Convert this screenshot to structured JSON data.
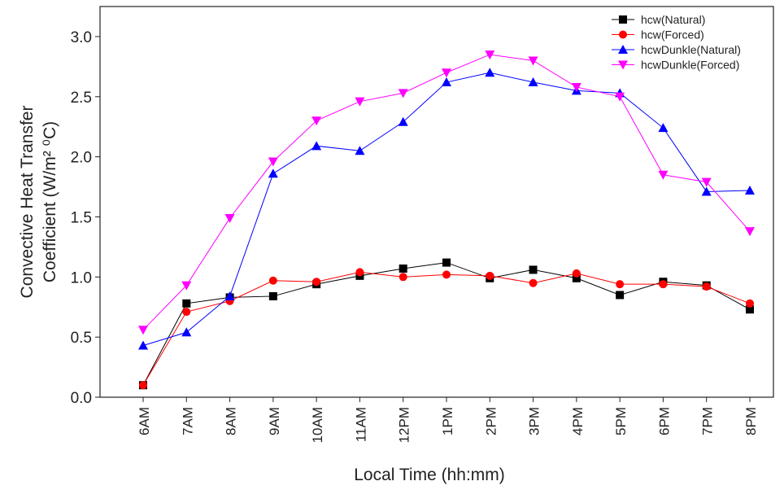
{
  "chart_data": {
    "type": "line",
    "y_label": [
      "Convective Heat Transfer",
      "Coefficient (W/m² ⁰C)"
    ],
    "x_label": "Local Time (hh:mm)",
    "categories": [
      "6AM",
      "7AM",
      "8AM",
      "9AM",
      "10AM",
      "11AM",
      "12PM",
      "1PM",
      "2PM",
      "3PM",
      "4PM",
      "5PM",
      "6PM",
      "7PM",
      "8PM"
    ],
    "series": [
      {
        "name": "hcw(Natural)",
        "color": "#000000",
        "marker": "square",
        "values": [
          0.1,
          0.78,
          0.83,
          0.84,
          0.94,
          1.01,
          1.07,
          1.12,
          0.99,
          1.06,
          0.99,
          0.85,
          0.96,
          0.93,
          0.73
        ]
      },
      {
        "name": "hcw(Forced)",
        "color": "#ff0000",
        "marker": "circle",
        "values": [
          0.1,
          0.71,
          0.8,
          0.97,
          0.96,
          1.04,
          1.0,
          1.02,
          1.01,
          0.95,
          1.03,
          0.94,
          0.94,
          0.92,
          0.78
        ]
      },
      {
        "name": "hcwDunkle(Natural)",
        "color": "#0000ff",
        "marker": "triangle-up",
        "values": [
          0.43,
          0.54,
          0.84,
          1.86,
          2.09,
          2.05,
          2.29,
          2.62,
          2.7,
          2.62,
          2.55,
          2.53,
          2.24,
          1.71,
          1.72
        ]
      },
      {
        "name": "hcwDunkle(Forced)",
        "color": "#ff00ff",
        "marker": "triangle-down",
        "values": [
          0.56,
          0.93,
          1.49,
          1.96,
          2.3,
          2.46,
          2.53,
          2.7,
          2.85,
          2.8,
          2.58,
          2.5,
          1.85,
          1.79,
          1.38
        ]
      }
    ],
    "ylim": [
      0,
      3.25
    ],
    "yticks": [
      {
        "value": 0,
        "label": "0.0"
      },
      0.5,
      {
        "value": 1,
        "label": "1.0"
      },
      1.5,
      {
        "value": 2,
        "label": "2.0"
      },
      2.5,
      {
        "value": 3,
        "label": "3.0"
      }
    ],
    "legend": "upper right"
  }
}
